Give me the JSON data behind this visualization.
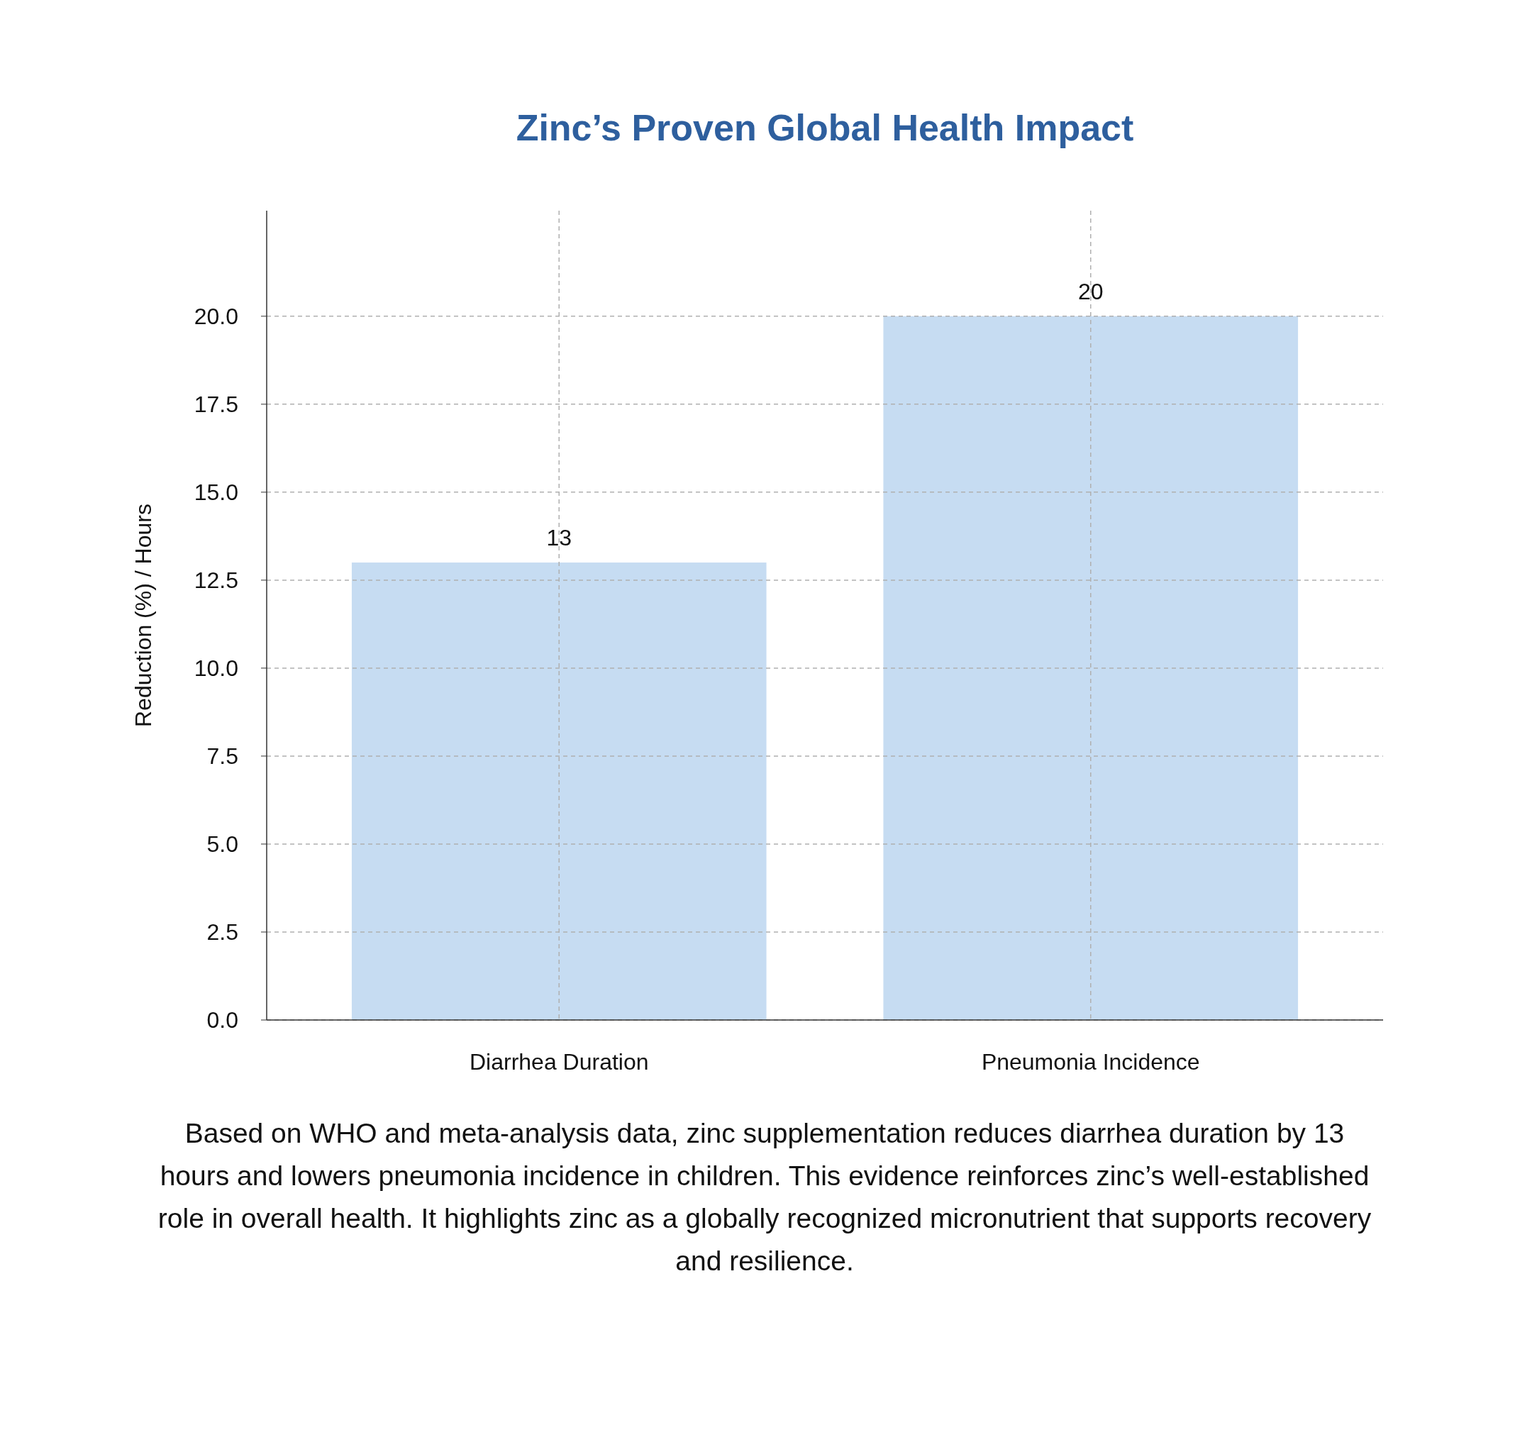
{
  "chart_data": {
    "type": "bar",
    "title": "Zinc’s Proven Global Health Impact",
    "ylabel": "Reduction (%) / Hours",
    "categories": [
      "Diarrhea Duration",
      "Pneumonia Incidence"
    ],
    "values": [
      13,
      20
    ],
    "color": "#c6dcf2",
    "data_labels": true,
    "ylim": [
      0,
      23
    ],
    "yticks": [
      {
        "value": 0,
        "label": "0.0"
      },
      {
        "value": 2.5,
        "label": "2.5"
      },
      {
        "value": 5,
        "label": "5.0"
      },
      {
        "value": 7.5,
        "label": "7.5"
      },
      {
        "value": 10,
        "label": "10.0"
      },
      {
        "value": 12.5,
        "label": "12.5"
      },
      {
        "value": 15,
        "label": "15.0"
      },
      {
        "value": 17.5,
        "label": "17.5"
      },
      {
        "value": 20,
        "label": "20.0"
      }
    ],
    "grid": true,
    "annotations": [
      "Based on WHO and meta-analysis data, zinc supplementation reduces diarrhea duration by 13 hours and lowers pneumonia incidence in children. This evidence reinforces zinc’s well-established role in overall health. It highlights zinc as a globally recognized micronutrient that supports recovery and resilience."
    ]
  }
}
